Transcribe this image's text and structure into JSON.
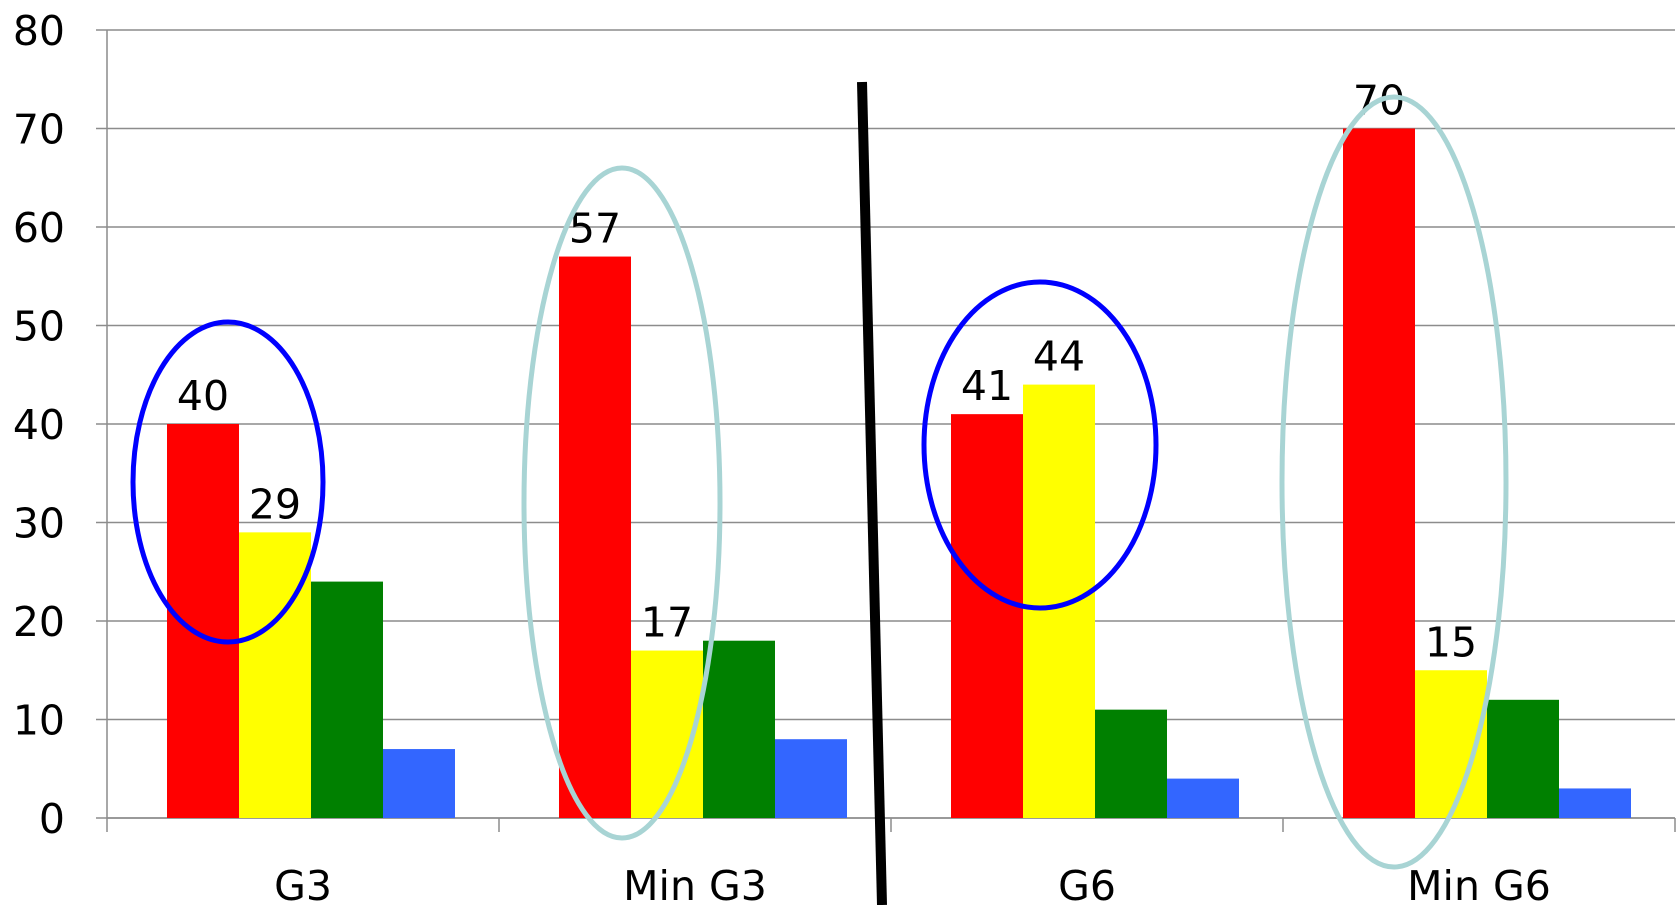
{
  "chart_data": {
    "type": "bar",
    "categories": [
      "G3",
      "Min G3",
      "G6",
      "Min G6"
    ],
    "series": [
      {
        "values": [
          40,
          57,
          41,
          70
        ],
        "color": "#ff0000"
      },
      {
        "values": [
          29,
          17,
          44,
          15
        ],
        "color": "#ffff00"
      },
      {
        "values": [
          24,
          18,
          11,
          12
        ],
        "color": "#008000"
      },
      {
        "values": [
          7,
          8,
          4,
          3
        ],
        "color": "#3366ff"
      }
    ],
    "data_labels": [
      {
        "category": 0,
        "series": 0,
        "text": "40"
      },
      {
        "category": 0,
        "series": 1,
        "text": "29"
      },
      {
        "category": 1,
        "series": 0,
        "text": "57"
      },
      {
        "category": 1,
        "series": 1,
        "text": "17"
      },
      {
        "category": 2,
        "series": 0,
        "text": "41"
      },
      {
        "category": 2,
        "series": 1,
        "text": "44"
      },
      {
        "category": 3,
        "series": 0,
        "text": "70"
      },
      {
        "category": 3,
        "series": 1,
        "text": "15"
      }
    ],
    "yticks": [
      "0",
      "10",
      "20",
      "30",
      "40",
      "50",
      "60",
      "70",
      "80"
    ],
    "ylim": [
      0,
      80
    ],
    "grid": true,
    "title": "",
    "xlabel": "",
    "ylabel": "",
    "annotations": {
      "highlight_colors": {
        "blue": "#0000ff",
        "light": "#a8d4d4"
      },
      "divider_color": "#000000"
    }
  }
}
